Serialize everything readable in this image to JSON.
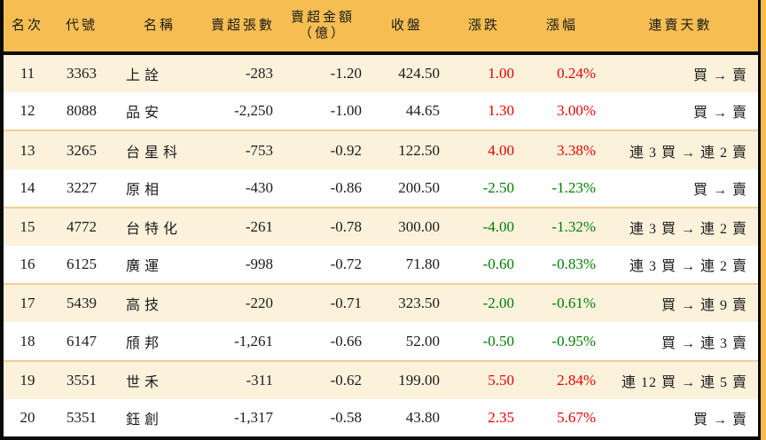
{
  "colors": {
    "header_bg": "#F6BE52",
    "row_alt_bg": "#FCF2DC",
    "row_bg": "#FFFFFF",
    "row_separator": "#F0CE96",
    "border_black": "#0A0A0A",
    "up_red": "#EE0000",
    "down_green": "#007F00",
    "text": "#1B1B1B"
  },
  "chart_data": {
    "type": "table",
    "header": {
      "rank": "名次",
      "code": "代號",
      "name": "名稱",
      "volume": "賣超張數",
      "amount_line1": "賣超金額",
      "amount_line2": "（億）",
      "close": "收盤",
      "change": "漲跌",
      "change_pct": "漲幅",
      "streak": "連賣天數"
    },
    "rows": [
      {
        "rank": "11",
        "code": "3363",
        "name": "上詮",
        "volume": "-283",
        "amount": "-1.20",
        "close": "424.50",
        "change": "1.00",
        "change_pct": "0.24%",
        "streak": "買 → 賣",
        "direction": "up"
      },
      {
        "rank": "12",
        "code": "8088",
        "name": "品安",
        "volume": "-2,250",
        "amount": "-1.00",
        "close": "44.65",
        "change": "1.30",
        "change_pct": "3.00%",
        "streak": "買 → 賣",
        "direction": "up"
      },
      {
        "rank": "13",
        "code": "3265",
        "name": "台星科",
        "volume": "-753",
        "amount": "-0.92",
        "close": "122.50",
        "change": "4.00",
        "change_pct": "3.38%",
        "streak": "連 3 買 → 連 2 賣",
        "direction": "up"
      },
      {
        "rank": "14",
        "code": "3227",
        "name": "原相",
        "volume": "-430",
        "amount": "-0.86",
        "close": "200.50",
        "change": "-2.50",
        "change_pct": "-1.23%",
        "streak": "買 → 賣",
        "direction": "down"
      },
      {
        "rank": "15",
        "code": "4772",
        "name": "台特化",
        "volume": "-261",
        "amount": "-0.78",
        "close": "300.00",
        "change": "-4.00",
        "change_pct": "-1.32%",
        "streak": "連 3 買 → 連 2 賣",
        "direction": "down"
      },
      {
        "rank": "16",
        "code": "6125",
        "name": "廣運",
        "volume": "-998",
        "amount": "-0.72",
        "close": "71.80",
        "change": "-0.60",
        "change_pct": "-0.83%",
        "streak": "連 3 買 → 連 2 賣",
        "direction": "down"
      },
      {
        "rank": "17",
        "code": "5439",
        "name": "高技",
        "volume": "-220",
        "amount": "-0.71",
        "close": "323.50",
        "change": "-2.00",
        "change_pct": "-0.61%",
        "streak": "買 → 連 9 賣",
        "direction": "down"
      },
      {
        "rank": "18",
        "code": "6147",
        "name": "頎邦",
        "volume": "-1,261",
        "amount": "-0.66",
        "close": "52.00",
        "change": "-0.50",
        "change_pct": "-0.95%",
        "streak": "買 → 連 3 賣",
        "direction": "down"
      },
      {
        "rank": "19",
        "code": "3551",
        "name": "世禾",
        "volume": "-311",
        "amount": "-0.62",
        "close": "199.00",
        "change": "5.50",
        "change_pct": "2.84%",
        "streak": "連 12 買 → 連 5 賣",
        "direction": "up"
      },
      {
        "rank": "20",
        "code": "5351",
        "name": "鈺創",
        "volume": "-1,317",
        "amount": "-0.58",
        "close": "43.80",
        "change": "2.35",
        "change_pct": "5.67%",
        "streak": "買 → 賣",
        "direction": "up"
      }
    ]
  }
}
